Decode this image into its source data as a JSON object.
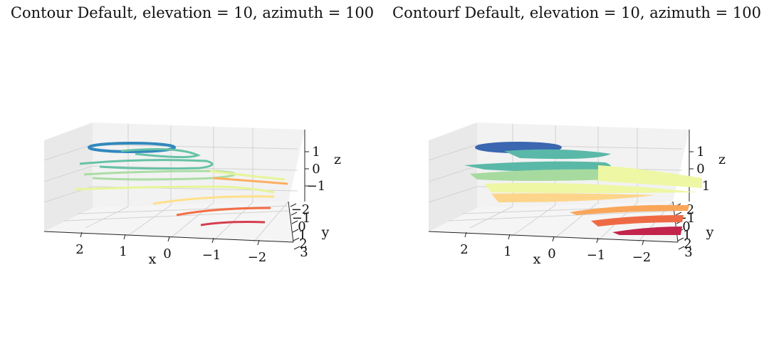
{
  "chart_data": [
    {
      "type": "contour",
      "title": "Contour Default, elevation = 10, azimuth = 100",
      "xlabel": "x",
      "ylabel": "y",
      "zlabel": "z",
      "elevation": 10,
      "azimuth": 100,
      "x_ticks": [
        "2",
        "1",
        "0",
        "−1",
        "−2"
      ],
      "y_ticks": [
        "−2",
        "−1",
        "0",
        "1",
        "2",
        "3"
      ],
      "z_ticks": [
        "1",
        "0",
        "−1"
      ],
      "colormap": "Spectral",
      "grid": true,
      "levels": [
        {
          "z": 1.5,
          "color": "#3288bd"
        },
        {
          "z": 1.0,
          "color": "#66c2a5"
        },
        {
          "z": 0.5,
          "color": "#abdda4"
        },
        {
          "z": 0.0,
          "color": "#e6f598"
        },
        {
          "z": -0.5,
          "color": "#fee08b"
        },
        {
          "z": -1.0,
          "color": "#fdae61"
        },
        {
          "z": -1.5,
          "color": "#f46d43"
        },
        {
          "z": -2.0,
          "color": "#d53e4f"
        }
      ]
    },
    {
      "type": "contourf",
      "title": "Contourf Default, elevation = 10, azimuth = 100",
      "xlabel": "x",
      "ylabel": "y",
      "zlabel": "z",
      "elevation": 10,
      "azimuth": 100,
      "x_ticks": [
        "2",
        "1",
        "0",
        "−1",
        "−2"
      ],
      "y_ticks": [
        "−2",
        "−1",
        "0",
        "1",
        "2",
        "3"
      ],
      "z_ticks": [
        "1",
        "0",
        "−1"
      ],
      "colormap": "Spectral",
      "grid": true,
      "levels": [
        {
          "z": 1.5,
          "color": "#3b66b0"
        },
        {
          "z": 1.0,
          "color": "#5ab8a8"
        },
        {
          "z": 0.5,
          "color": "#a7da9f"
        },
        {
          "z": 0.0,
          "color": "#eef7a3"
        },
        {
          "z": -0.5,
          "color": "#fdd58a"
        },
        {
          "z": -1.0,
          "color": "#f9a65a"
        },
        {
          "z": -1.5,
          "color": "#ee6a45"
        },
        {
          "z": -2.0,
          "color": "#c2244b"
        }
      ]
    }
  ]
}
